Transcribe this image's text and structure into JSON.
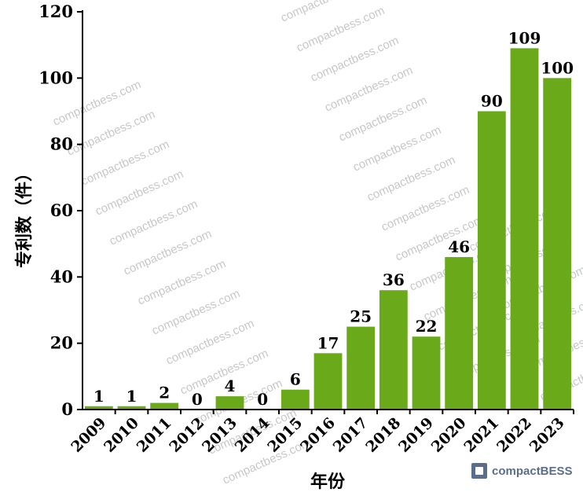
{
  "chart_data": {
    "type": "bar",
    "xlabel": "年份",
    "ylabel": "专利数（件）",
    "categories": [
      "2009",
      "2010",
      "2011",
      "2012",
      "2013",
      "2014",
      "2015",
      "2016",
      "2017",
      "2018",
      "2019",
      "2020",
      "2021",
      "2022",
      "2023"
    ],
    "values": [
      1,
      1,
      2,
      0,
      4,
      0,
      6,
      17,
      25,
      36,
      22,
      46,
      90,
      109,
      100
    ],
    "ylim": [
      0,
      120
    ],
    "yticks": [
      0,
      20,
      40,
      60,
      80,
      100,
      120
    ],
    "bar_color": "#6aaa1a",
    "grid": false,
    "data_labels": true
  },
  "watermark": {
    "text": "compactbess.com",
    "logo_text": "compactBESS"
  }
}
